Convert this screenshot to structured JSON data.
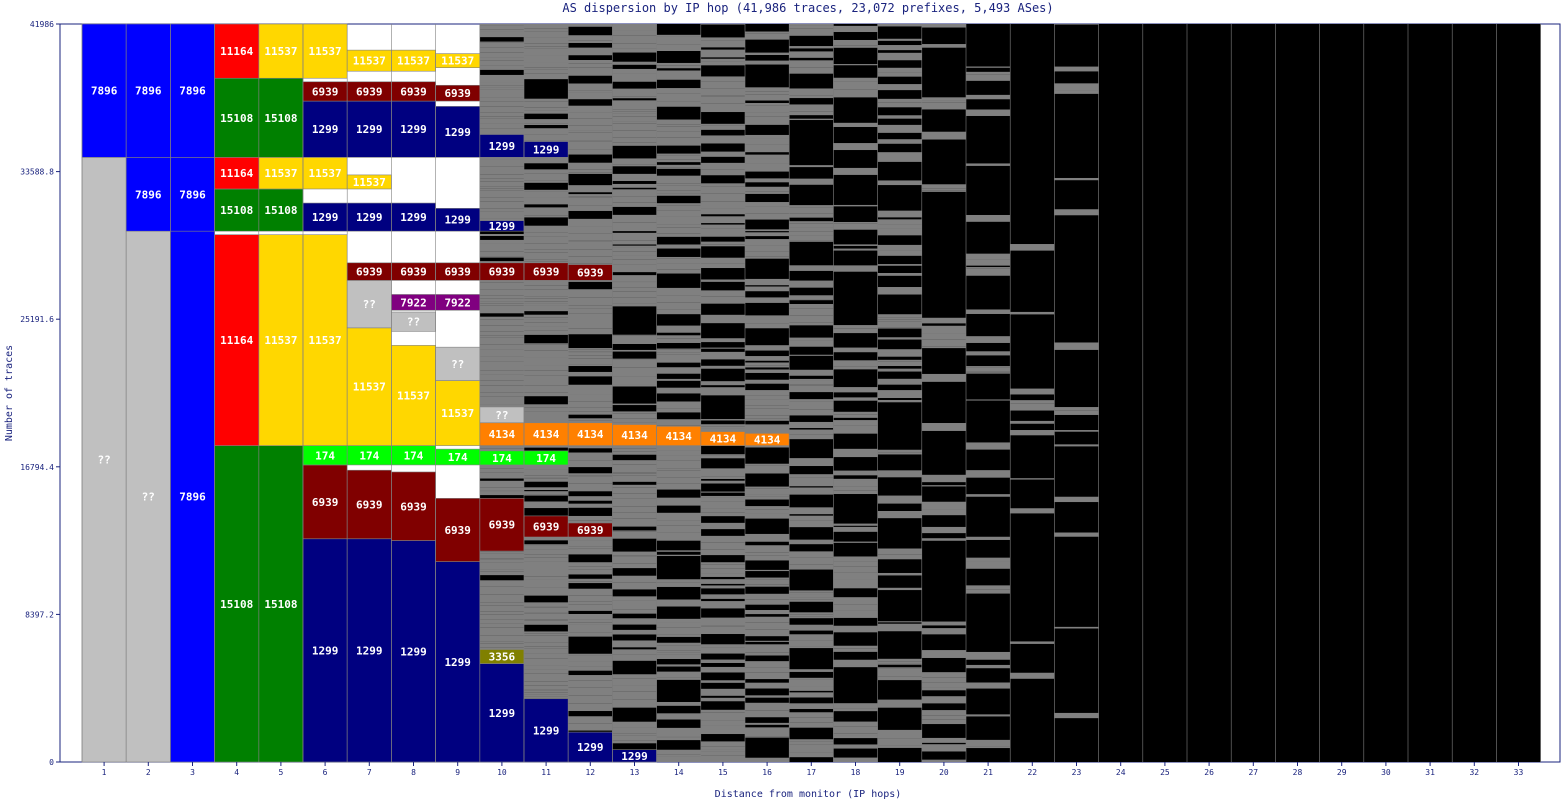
{
  "chart_data": {
    "type": "bar",
    "title": "AS dispersion by IP hop (41,986 traces, 23,072 prefixes, 5,493 ASes)",
    "xlabel": "Distance from monitor (IP hops)",
    "ylabel": "Number of traces",
    "ylim": [
      0,
      41986
    ],
    "y_ticks": [
      "0",
      "8397.2",
      "16794.4",
      "25191.6",
      "33588.8",
      "41986"
    ],
    "categories": [
      "1",
      "2",
      "3",
      "4",
      "5",
      "6",
      "7",
      "8",
      "9",
      "10",
      "11",
      "12",
      "13",
      "14",
      "15",
      "16",
      "17",
      "18",
      "19",
      "20",
      "21",
      "22",
      "23",
      "24",
      "25",
      "26",
      "27",
      "28",
      "29",
      "30",
      "31",
      "32",
      "33"
    ],
    "colors": {
      "blue": "#0000ff",
      "navy": "#000080",
      "green": "#008000",
      "red": "#ff0000",
      "yellow": "#ffd700",
      "maroon": "#800000",
      "lightgreen": "#00ff00",
      "orange": "#ff8000",
      "magenta": "#ff00ff",
      "purple": "#800080",
      "olive": "#808000",
      "cyan": "#00ffff",
      "silver": "#c0c0c0",
      "gray": "#808080",
      "black": "#000000"
    },
    "segments": [
      {
        "hop": 1,
        "from": 0,
        "to": 34400,
        "label": "??",
        "color": "silver"
      },
      {
        "hop": 1,
        "from": 34400,
        "to": 41986,
        "label": "7896",
        "color": "blue"
      },
      {
        "hop": 2,
        "from": 0,
        "to": 30200,
        "label": "??",
        "color": "silver"
      },
      {
        "hop": 2,
        "from": 30200,
        "to": 34400,
        "label": "7896",
        "color": "blue"
      },
      {
        "hop": 2,
        "from": 34400,
        "to": 41986,
        "label": "7896",
        "color": "blue"
      },
      {
        "hop": 3,
        "from": 0,
        "to": 30200,
        "label": "7896",
        "color": "blue"
      },
      {
        "hop": 3,
        "from": 30200,
        "to": 34400,
        "label": "7896",
        "color": "blue"
      },
      {
        "hop": 3,
        "from": 34400,
        "to": 41986,
        "label": "7896",
        "color": "blue"
      },
      {
        "hop": 4,
        "from": 0,
        "to": 18000,
        "label": "15108",
        "color": "green"
      },
      {
        "hop": 4,
        "from": 18000,
        "to": 30000,
        "label": "11164",
        "color": "red"
      },
      {
        "hop": 4,
        "from": 30200,
        "to": 32600,
        "label": "15108",
        "color": "green"
      },
      {
        "hop": 4,
        "from": 32600,
        "to": 34400,
        "label": "11164",
        "color": "red"
      },
      {
        "hop": 4,
        "from": 34400,
        "to": 38900,
        "label": "15108",
        "color": "green"
      },
      {
        "hop": 4,
        "from": 38900,
        "to": 41986,
        "label": "11164",
        "color": "red"
      },
      {
        "hop": 5,
        "from": 0,
        "to": 18000,
        "label": "15108",
        "color": "green"
      },
      {
        "hop": 5,
        "from": 18000,
        "to": 30000,
        "label": "11537",
        "color": "yellow"
      },
      {
        "hop": 5,
        "from": 30200,
        "to": 32600,
        "label": "15108",
        "color": "green"
      },
      {
        "hop": 5,
        "from": 32600,
        "to": 34400,
        "label": "11537",
        "color": "yellow"
      },
      {
        "hop": 5,
        "from": 34400,
        "to": 38900,
        "label": "15108",
        "color": "green"
      },
      {
        "hop": 5,
        "from": 38900,
        "to": 41986,
        "label": "11537",
        "color": "yellow"
      },
      {
        "hop": 6,
        "from": 0,
        "to": 12700,
        "label": "1299",
        "color": "navy"
      },
      {
        "hop": 6,
        "from": 12700,
        "to": 16900,
        "label": "6939",
        "color": "maroon"
      },
      {
        "hop": 6,
        "from": 16900,
        "to": 18000,
        "label": "174",
        "color": "lightgreen"
      },
      {
        "hop": 6,
        "from": 18000,
        "to": 30000,
        "label": "11537",
        "color": "yellow"
      },
      {
        "hop": 6,
        "from": 30200,
        "to": 31800,
        "label": "1299",
        "color": "navy"
      },
      {
        "hop": 6,
        "from": 32600,
        "to": 34400,
        "label": "11537",
        "color": "yellow"
      },
      {
        "hop": 6,
        "from": 34400,
        "to": 37600,
        "label": "1299",
        "color": "navy"
      },
      {
        "hop": 6,
        "from": 37600,
        "to": 38700,
        "label": "6939",
        "color": "maroon"
      },
      {
        "hop": 6,
        "from": 38900,
        "to": 41986,
        "label": "11537",
        "color": "yellow"
      },
      {
        "hop": 7,
        "from": 0,
        "to": 12700,
        "label": "1299",
        "color": "navy"
      },
      {
        "hop": 7,
        "from": 12700,
        "to": 16600,
        "label": "6939",
        "color": "maroon"
      },
      {
        "hop": 7,
        "from": 16900,
        "to": 18000,
        "label": "174",
        "color": "lightgreen"
      },
      {
        "hop": 7,
        "from": 18000,
        "to": 24700,
        "label": "11537",
        "color": "yellow"
      },
      {
        "hop": 7,
        "from": 24700,
        "to": 27400,
        "label": "??",
        "color": "silver"
      },
      {
        "hop": 7,
        "from": 27400,
        "to": 28400,
        "label": "6939",
        "color": "maroon"
      },
      {
        "hop": 7,
        "from": 30200,
        "to": 31800,
        "label": "1299",
        "color": "navy"
      },
      {
        "hop": 7,
        "from": 32600,
        "to": 33400,
        "label": "11537",
        "color": "yellow"
      },
      {
        "hop": 7,
        "from": 34400,
        "to": 37600,
        "label": "1299",
        "color": "navy"
      },
      {
        "hop": 7,
        "from": 37600,
        "to": 38700,
        "label": "6939",
        "color": "maroon"
      },
      {
        "hop": 7,
        "from": 39300,
        "to": 40500,
        "label": "11537",
        "color": "yellow"
      },
      {
        "hop": 8,
        "from": 0,
        "to": 12600,
        "label": "1299",
        "color": "navy"
      },
      {
        "hop": 8,
        "from": 12600,
        "to": 16500,
        "label": "6939",
        "color": "maroon"
      },
      {
        "hop": 8,
        "from": 16900,
        "to": 18000,
        "label": "174",
        "color": "lightgreen"
      },
      {
        "hop": 8,
        "from": 18000,
        "to": 23700,
        "label": "11537",
        "color": "yellow"
      },
      {
        "hop": 8,
        "from": 24500,
        "to": 25600,
        "label": "??",
        "color": "silver"
      },
      {
        "hop": 8,
        "from": 25700,
        "to": 26600,
        "label": "7922",
        "color": "purple"
      },
      {
        "hop": 8,
        "from": 27400,
        "to": 28400,
        "label": "6939",
        "color": "maroon"
      },
      {
        "hop": 8,
        "from": 30200,
        "to": 31800,
        "label": "1299",
        "color": "navy"
      },
      {
        "hop": 8,
        "from": 34400,
        "to": 37600,
        "label": "1299",
        "color": "navy"
      },
      {
        "hop": 8,
        "from": 37600,
        "to": 38700,
        "label": "6939",
        "color": "maroon"
      },
      {
        "hop": 8,
        "from": 39300,
        "to": 40500,
        "label": "11537",
        "color": "yellow"
      },
      {
        "hop": 9,
        "from": 0,
        "to": 11400,
        "label": "1299",
        "color": "navy"
      },
      {
        "hop": 9,
        "from": 11400,
        "to": 15000,
        "label": "6939",
        "color": "maroon"
      },
      {
        "hop": 9,
        "from": 16900,
        "to": 17800,
        "label": "174",
        "color": "lightgreen"
      },
      {
        "hop": 9,
        "from": 18000,
        "to": 21700,
        "label": "11537",
        "color": "yellow"
      },
      {
        "hop": 9,
        "from": 21700,
        "to": 23600,
        "label": "??",
        "color": "silver"
      },
      {
        "hop": 9,
        "from": 25700,
        "to": 26600,
        "label": "7922",
        "color": "purple"
      },
      {
        "hop": 9,
        "from": 27400,
        "to": 28400,
        "label": "6939",
        "color": "maroon"
      },
      {
        "hop": 9,
        "from": 30200,
        "to": 31500,
        "label": "1299",
        "color": "navy"
      },
      {
        "hop": 9,
        "from": 34400,
        "to": 37300,
        "label": "1299",
        "color": "navy"
      },
      {
        "hop": 9,
        "from": 37600,
        "to": 38500,
        "label": "6939",
        "color": "maroon"
      },
      {
        "hop": 9,
        "from": 39500,
        "to": 40300,
        "label": "11537",
        "color": "yellow"
      },
      {
        "hop": 10,
        "from": 0,
        "to": 5600,
        "label": "1299",
        "color": "navy"
      },
      {
        "hop": 10,
        "from": 5600,
        "to": 6400,
        "label": "3356",
        "color": "olive"
      },
      {
        "hop": 10,
        "from": 12000,
        "to": 15000,
        "label": "6939",
        "color": "maroon"
      },
      {
        "hop": 10,
        "from": 16900,
        "to": 17700,
        "label": "174",
        "color": "lightgreen"
      },
      {
        "hop": 10,
        "from": 18000,
        "to": 19300,
        "label": "4134",
        "color": "orange"
      },
      {
        "hop": 10,
        "from": 19300,
        "to": 20200,
        "label": "??",
        "color": "silver"
      },
      {
        "hop": 10,
        "from": 27400,
        "to": 28400,
        "label": "6939",
        "color": "maroon"
      },
      {
        "hop": 10,
        "from": 30200,
        "to": 30800,
        "label": "1299",
        "color": "navy"
      },
      {
        "hop": 10,
        "from": 34400,
        "to": 35700,
        "label": "1299",
        "color": "navy"
      },
      {
        "hop": 11,
        "from": 0,
        "to": 3600,
        "label": "1299",
        "color": "navy"
      },
      {
        "hop": 11,
        "from": 12800,
        "to": 14000,
        "label": "6939",
        "color": "maroon"
      },
      {
        "hop": 11,
        "from": 16900,
        "to": 17700,
        "label": "174",
        "color": "lightgreen"
      },
      {
        "hop": 11,
        "from": 18000,
        "to": 19300,
        "label": "4134",
        "color": "orange"
      },
      {
        "hop": 11,
        "from": 27400,
        "to": 28400,
        "label": "6939",
        "color": "maroon"
      },
      {
        "hop": 11,
        "from": 34400,
        "to": 35300,
        "label": "1299",
        "color": "navy"
      },
      {
        "hop": 12,
        "from": 0,
        "to": 1700,
        "label": "1299",
        "color": "navy"
      },
      {
        "hop": 12,
        "from": 12800,
        "to": 13600,
        "label": "6939",
        "color": "maroon"
      },
      {
        "hop": 12,
        "from": 18000,
        "to": 19300,
        "label": "4134",
        "color": "orange"
      },
      {
        "hop": 12,
        "from": 27400,
        "to": 28300,
        "label": "6939",
        "color": "maroon"
      },
      {
        "hop": 13,
        "from": 0,
        "to": 700,
        "label": "1299",
        "color": "navy"
      },
      {
        "hop": 13,
        "from": 18000,
        "to": 19200,
        "label": "4134",
        "color": "orange"
      },
      {
        "hop": 14,
        "from": 18000,
        "to": 19100,
        "label": "4134",
        "color": "orange"
      },
      {
        "hop": 15,
        "from": 18000,
        "to": 18800,
        "label": "4134",
        "color": "orange"
      },
      {
        "hop": 16,
        "from": 18000,
        "to": 18700,
        "label": "4134",
        "color": "orange"
      }
    ]
  }
}
